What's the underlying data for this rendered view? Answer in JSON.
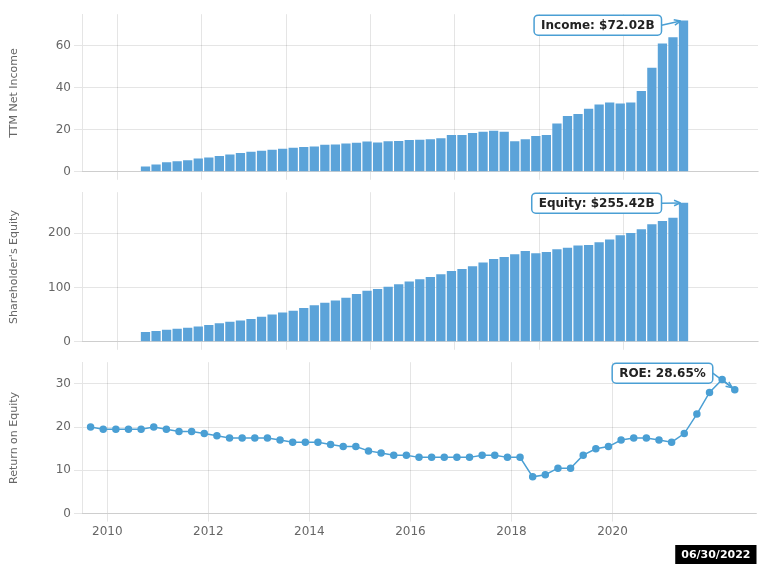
{
  "chart_data": [
    {
      "type": "bar",
      "x": [
        2009.67,
        2009.92,
        2010.17,
        2010.42,
        2010.67,
        2010.92,
        2011.17,
        2011.42,
        2011.67,
        2011.92,
        2012.17,
        2012.42,
        2012.67,
        2012.92,
        2013.17,
        2013.42,
        2013.67,
        2013.92,
        2014.17,
        2014.42,
        2014.67,
        2014.92,
        2015.17,
        2015.42,
        2015.67,
        2015.92,
        2016.17,
        2016.42,
        2016.67,
        2016.92,
        2017.17,
        2017.42,
        2017.67,
        2017.92,
        2018.17,
        2018.42,
        2018.67,
        2018.92,
        2019.17,
        2019.42,
        2019.67,
        2019.92,
        2020.17,
        2020.42,
        2020.67,
        2020.92,
        2021.17,
        2021.42,
        2021.67,
        2021.92,
        2022.17,
        2022.42
      ],
      "values": [
        2.5,
        3.5,
        4.5,
        5.0,
        5.5,
        6.3,
        6.8,
        7.5,
        8.2,
        9.0,
        9.5,
        10.0,
        10.5,
        11.0,
        11.5,
        11.8,
        12.0,
        12.9,
        13.0,
        13.5,
        13.8,
        14.4,
        14.0,
        14.5,
        14.7,
        15.1,
        15.2,
        15.5,
        16.0,
        17.5,
        17.5,
        18.5,
        19.0,
        19.5,
        19.0,
        14.5,
        15.5,
        17.0,
        17.5,
        23.0,
        26.5,
        27.5,
        30.0,
        32.0,
        33.0,
        32.5,
        33.0,
        38.5,
        49.5,
        61.0,
        64.0,
        72.02
      ],
      "color": "#5ba3d9",
      "ylabel": "TTM Net Income",
      "xlim": [
        2009.5,
        2022.85
      ],
      "xticks": [
        2010,
        2012,
        2014,
        2016,
        2018,
        2020
      ],
      "ylim": [
        0,
        75
      ],
      "yticks": [
        0,
        20,
        40,
        60
      ],
      "grid": true,
      "tick_labels": "y",
      "annotations": [
        {
          "text": "Income: $72.02B",
          "x": 2022.42,
          "y": 72.02,
          "color": "#4a9fd4"
        }
      ]
    },
    {
      "type": "bar",
      "x": [
        2009.67,
        2009.92,
        2010.17,
        2010.42,
        2010.67,
        2010.92,
        2011.17,
        2011.42,
        2011.67,
        2011.92,
        2012.17,
        2012.42,
        2012.67,
        2012.92,
        2013.17,
        2013.42,
        2013.67,
        2013.92,
        2014.17,
        2014.42,
        2014.67,
        2014.92,
        2015.17,
        2015.42,
        2015.67,
        2015.92,
        2016.17,
        2016.42,
        2016.67,
        2016.92,
        2017.17,
        2017.42,
        2017.67,
        2017.92,
        2018.17,
        2018.42,
        2018.67,
        2018.92,
        2019.17,
        2019.42,
        2019.67,
        2019.92,
        2020.17,
        2020.42,
        2020.67,
        2020.92,
        2021.17,
        2021.42,
        2021.67,
        2021.92,
        2022.17,
        2022.42
      ],
      "values": [
        18.0,
        20.0,
        22.0,
        24.0,
        26.0,
        28.0,
        31.0,
        34.0,
        37.0,
        39.0,
        42.0,
        46.0,
        50.0,
        54.0,
        57.0,
        62.0,
        67.0,
        72.0,
        76.0,
        81.0,
        88.0,
        94.0,
        97.0,
        101.0,
        106.0,
        111.0,
        115.0,
        119.0,
        124.0,
        130.0,
        134.0,
        139.0,
        146.0,
        152.0,
        156.0,
        161.0,
        167.0,
        163.0,
        165.0,
        170.0,
        173.0,
        177.0,
        178.0,
        183.0,
        188.0,
        196.0,
        200.0,
        207.0,
        216.0,
        222.0,
        228.0,
        255.42
      ],
      "color": "#5ba3d9",
      "ylabel": "Shareholder's Equity",
      "xlim": [
        2009.5,
        2022.85
      ],
      "xticks": [
        2010,
        2012,
        2014,
        2016,
        2018,
        2020
      ],
      "ylim": [
        0,
        275
      ],
      "yticks": [
        0,
        100,
        200
      ],
      "grid": true,
      "tick_labels": "y",
      "annotations": [
        {
          "text": "Equity: $255.42B",
          "x": 2022.42,
          "y": 255.42,
          "color": "#4a9fd4"
        }
      ]
    },
    {
      "type": "line",
      "x": [
        2009.67,
        2009.92,
        2010.17,
        2010.42,
        2010.67,
        2010.92,
        2011.17,
        2011.42,
        2011.67,
        2011.92,
        2012.17,
        2012.42,
        2012.67,
        2012.92,
        2013.17,
        2013.42,
        2013.67,
        2013.92,
        2014.17,
        2014.42,
        2014.67,
        2014.92,
        2015.17,
        2015.42,
        2015.67,
        2015.92,
        2016.17,
        2016.42,
        2016.67,
        2016.92,
        2017.17,
        2017.42,
        2017.67,
        2017.92,
        2018.17,
        2018.42,
        2018.67,
        2018.92,
        2019.17,
        2019.42,
        2019.67,
        2019.92,
        2020.17,
        2020.42,
        2020.67,
        2020.92,
        2021.17,
        2021.42,
        2021.67,
        2021.92,
        2022.17,
        2022.42
      ],
      "values": [
        20.0,
        19.5,
        19.5,
        19.5,
        19.5,
        20.0,
        19.5,
        19.0,
        19.0,
        18.5,
        18.0,
        17.5,
        17.5,
        17.5,
        17.5,
        17.0,
        16.5,
        16.5,
        16.5,
        16.0,
        15.5,
        15.5,
        14.5,
        14.0,
        13.5,
        13.5,
        13.0,
        13.0,
        13.0,
        13.0,
        13.0,
        13.5,
        13.5,
        13.0,
        13.0,
        8.5,
        9.0,
        10.5,
        10.5,
        13.5,
        15.0,
        15.5,
        17.0,
        17.5,
        17.5,
        17.0,
        16.5,
        18.5,
        23.0,
        28.0,
        31.0,
        28.65
      ],
      "color": "#4a9fd4",
      "marker": "circle",
      "ylabel": "Return on Equity",
      "xlim": [
        2009.5,
        2022.85
      ],
      "xticks": [
        2010,
        2012,
        2014,
        2016,
        2018,
        2020
      ],
      "ylim": [
        0,
        35
      ],
      "yticks": [
        0,
        10,
        20,
        30
      ],
      "grid": true,
      "annotations": [
        {
          "text": "ROE: 28.65%",
          "x": 2022.42,
          "y": 28.65,
          "color": "#4a9fd4"
        },
        {
          "text": "06/30/2022",
          "color": "#000000"
        }
      ]
    }
  ]
}
